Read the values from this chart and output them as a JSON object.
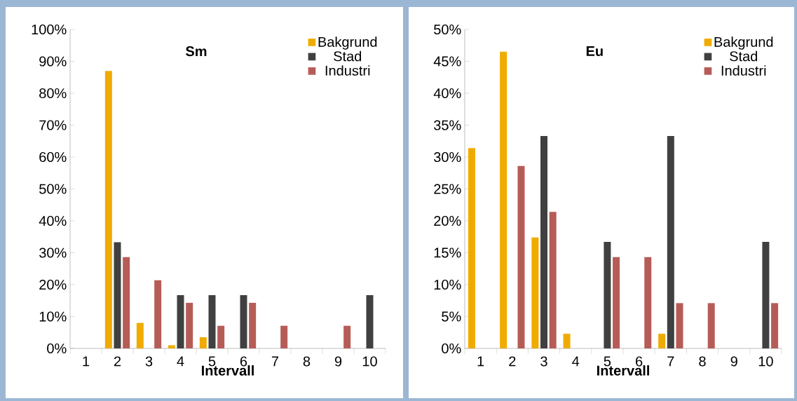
{
  "chart_data": [
    {
      "type": "bar",
      "title": "Sm",
      "xlabel": "Intervall",
      "categories": [
        "1",
        "2",
        "3",
        "4",
        "5",
        "6",
        "7",
        "8",
        "9",
        "10"
      ],
      "legend": "top right",
      "ylim": [
        0,
        100
      ],
      "yticks": [
        {
          "value": 0,
          "label": "0%"
        },
        {
          "value": 10,
          "label": "10%"
        },
        {
          "value": 20,
          "label": "20%"
        },
        {
          "value": 30,
          "label": "30%"
        },
        {
          "value": 40,
          "label": "40%"
        },
        {
          "value": 50,
          "label": "50%"
        },
        {
          "value": 60,
          "label": "60%"
        },
        {
          "value": 70,
          "label": "70%"
        },
        {
          "value": 80,
          "label": "80%"
        },
        {
          "value": 90,
          "label": "90%"
        },
        {
          "value": 100,
          "label": "100%"
        }
      ],
      "series": [
        {
          "name": "Bakgrund",
          "color": "#f0ab00",
          "values": [
            0,
            87,
            8,
            1,
            3.5,
            0,
            0,
            0,
            0,
            0
          ]
        },
        {
          "name": "Stad",
          "color": "#404040",
          "values": [
            0,
            33.3,
            0,
            16.7,
            16.7,
            16.7,
            0,
            0,
            0,
            16.7
          ]
        },
        {
          "name": "Industri",
          "color": "#b65c57",
          "values": [
            0,
            28.6,
            21.4,
            14.3,
            7.1,
            14.3,
            7.1,
            0,
            7.1,
            0
          ]
        }
      ]
    },
    {
      "type": "bar",
      "title": "Eu",
      "xlabel": "Intervall",
      "categories": [
        "1",
        "2",
        "3",
        "4",
        "5",
        "6",
        "7",
        "8",
        "9",
        "10"
      ],
      "legend": "top right",
      "ylim": [
        0,
        50
      ],
      "yticks": [
        {
          "value": 0,
          "label": "0%"
        },
        {
          "value": 5,
          "label": "5%"
        },
        {
          "value": 10,
          "label": "10%"
        },
        {
          "value": 15,
          "label": "15%"
        },
        {
          "value": 20,
          "label": "20%"
        },
        {
          "value": 25,
          "label": "25%"
        },
        {
          "value": 30,
          "label": "30%"
        },
        {
          "value": 35,
          "label": "35%"
        },
        {
          "value": 40,
          "label": "40%"
        },
        {
          "value": 45,
          "label": "45%"
        },
        {
          "value": 50,
          "label": "50%"
        }
      ],
      "series": [
        {
          "name": "Bakgrund",
          "color": "#f0ab00",
          "values": [
            31.4,
            46.5,
            17.4,
            2.3,
            0,
            0,
            2.3,
            0,
            0,
            0
          ]
        },
        {
          "name": "Stad",
          "color": "#404040",
          "values": [
            0,
            0,
            33.3,
            0,
            16.7,
            0,
            33.3,
            0,
            0,
            16.7
          ]
        },
        {
          "name": "Industri",
          "color": "#b65c57",
          "values": [
            0,
            28.6,
            21.4,
            0,
            14.3,
            14.3,
            7.1,
            7.1,
            0,
            7.1
          ]
        }
      ]
    }
  ]
}
